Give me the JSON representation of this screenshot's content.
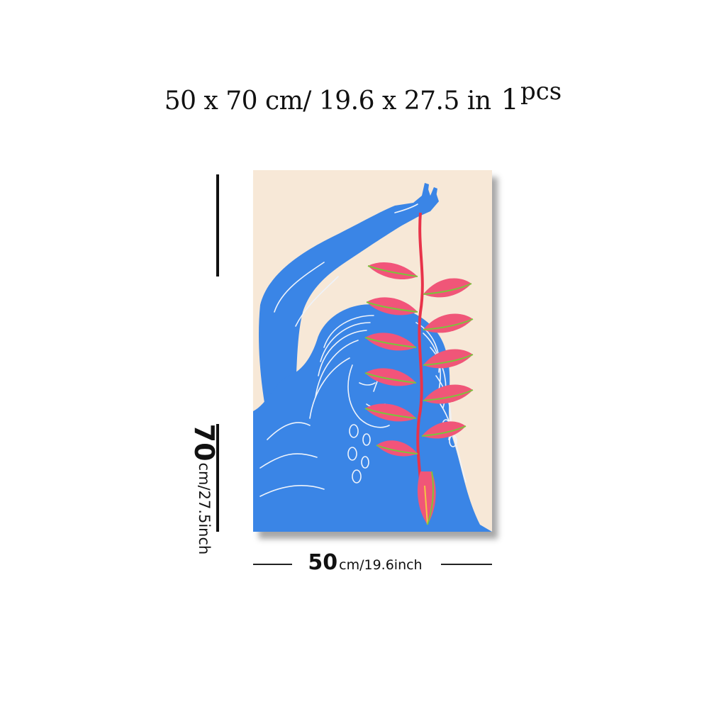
{
  "headline": {
    "dimensions": "50 x 70 cm/ 19.6 x 27.5 in",
    "quantity_number": "1",
    "quantity_unit": "pcs"
  },
  "height_label": {
    "value": "70",
    "unit": "cm/27.5inch"
  },
  "width_label": {
    "value": "50",
    "unit": "cm/19.6inch"
  },
  "artwork": {
    "subject": "woman-holding-heliconia",
    "colors": {
      "background": "#f7e8d7",
      "figure": "#3a85e6",
      "stem": "#e8334a",
      "bract": "#f2547a",
      "leaf": "#7cc43c"
    }
  }
}
